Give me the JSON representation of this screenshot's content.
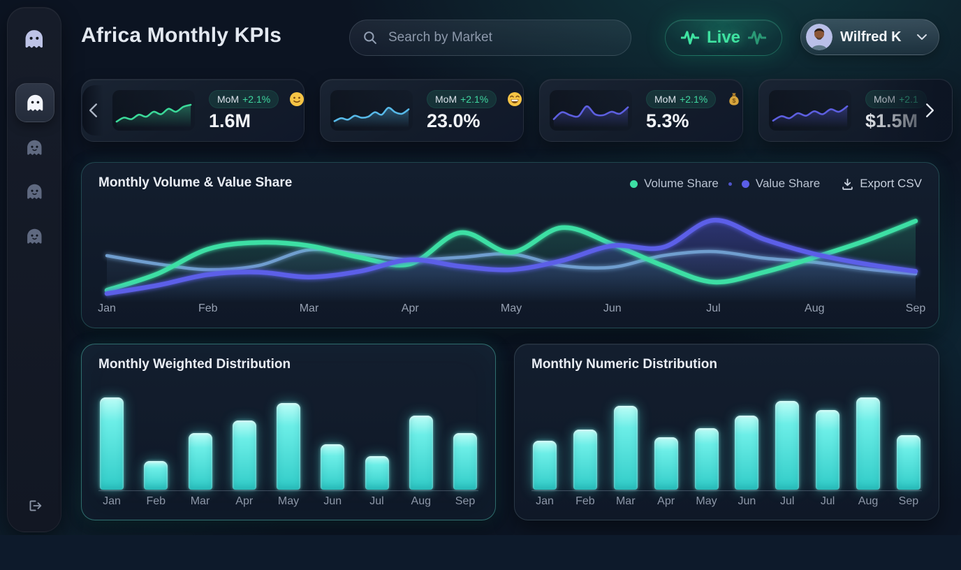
{
  "header": {
    "title": "Africa Monthly KPIs",
    "search": {
      "placeholder": "Search by Market"
    },
    "live_badge": {
      "label": "Live",
      "color": "#3fe3a1"
    },
    "user": {
      "name": "Wilfred K"
    }
  },
  "sidebar": {
    "item_count": 4,
    "active_index": 0
  },
  "kpi_carousel": {
    "cards": [
      {
        "value": "1.6M",
        "badge_label": "MoM",
        "badge_delta": "+2.1%",
        "emoji": "slightly-smiling-face",
        "spark_color": "#3bd999",
        "spark": [
          10,
          26,
          20,
          38,
          30,
          50,
          40,
          62,
          50,
          70,
          78
        ]
      },
      {
        "value": "23.0%",
        "badge_label": "MoM",
        "badge_delta": "+2.1%",
        "emoji": "beaming-face",
        "spark_color": "#57b9e8",
        "spark": [
          12,
          24,
          18,
          34,
          26,
          30,
          48,
          38,
          66,
          48,
          42,
          60
        ]
      },
      {
        "value": "5.3%",
        "badge_label": "MoM",
        "badge_delta": "+2.1%",
        "emoji": "money-bag",
        "spark_color": "#5d5fe0",
        "spark": [
          20,
          48,
          36,
          32,
          72,
          40,
          36,
          50,
          42,
          68
        ]
      },
      {
        "value": "$1.5M",
        "badge_label": "MoM",
        "badge_delta": "+2.1",
        "emoji": "",
        "spark_color": "#5d5fe0",
        "spark": [
          14,
          32,
          24,
          44,
          34,
          52,
          40,
          60,
          50,
          72
        ]
      }
    ]
  },
  "main_chart": {
    "title": "Monthly Volume & Value Share",
    "legend": [
      {
        "label": "Volume Share",
        "color": "#3ddfa4"
      },
      {
        "label": "Value Share",
        "color": "#5b5ee8"
      }
    ],
    "export_label": "Export CSV"
  },
  "bar_cards": [
    {
      "title": "Monthly Weighted Distribution"
    },
    {
      "title": "Monthly Numeric Distribution"
    }
  ],
  "chart_data": [
    {
      "type": "line",
      "title": "Monthly Volume & Value Share",
      "x": [
        "Jan",
        "Feb",
        "Mar",
        "Apr",
        "May",
        "Jun",
        "Jul",
        "Aug",
        "Sep"
      ],
      "ylim": [
        0,
        100
      ],
      "grid": false,
      "legend_position": "top-right",
      "series": [
        {
          "name": "Volume Share",
          "color": "#3ddfa4",
          "values": [
            8,
            58,
            62,
            40,
            54,
            64,
            18,
            48,
            92
          ]
        },
        {
          "name": "Value Share",
          "color": "#5b5ee8",
          "values": [
            4,
            27,
            24,
            45,
            33,
            62,
            93,
            52,
            31
          ]
        },
        {
          "name": "secondary-trend",
          "color": "#6f9ecf",
          "values": [
            50,
            33,
            57,
            45,
            52,
            36,
            55,
            42,
            28
          ]
        }
      ],
      "series_dense_step": 0.5,
      "series_dense": [
        {
          "name": "secondary-trend",
          "color": "#6f9ecf",
          "width": 4.5,
          "fill_opacity": 0.14,
          "values": [
            50,
            40,
            33,
            38,
            57,
            52,
            45,
            48,
            52,
            38,
            36,
            50,
            55,
            47,
            42,
            34,
            28
          ]
        },
        {
          "name": "Volume Share",
          "color": "#3ddfa4",
          "width": 6.5,
          "fill_opacity": 0.2,
          "values": [
            8,
            28,
            58,
            66,
            62,
            48,
            40,
            78,
            54,
            84,
            64,
            38,
            18,
            30,
            48,
            68,
            92
          ]
        },
        {
          "name": "Value Share",
          "color": "#5b5ee8",
          "width": 6.5,
          "fill_opacity": 0.38,
          "values": [
            4,
            14,
            27,
            30,
            24,
            31,
            45,
            37,
            33,
            44,
            62,
            60,
            93,
            70,
            52,
            40,
            31
          ]
        }
      ]
    },
    {
      "type": "bar",
      "title": "Monthly Weighted Distribution",
      "categories": [
        "Jan",
        "Feb",
        "Mar",
        "Apr",
        "May",
        "Jun",
        "Jul",
        "Aug",
        "Sep"
      ],
      "values": [
        100,
        31,
        61,
        75,
        94,
        49,
        36,
        80,
        61
      ],
      "ylim": [
        0,
        100
      ],
      "grid": false,
      "bar_color_top": "#bdfdf7",
      "bar_color_bottom": "#31ccc8"
    },
    {
      "type": "bar",
      "title": "Monthly Numeric Distribution",
      "categories": [
        "Jan",
        "Feb",
        "Mar",
        "Apr",
        "May",
        "Jun",
        "Jul",
        "Jul",
        "Aug",
        "Sep"
      ],
      "values": [
        53,
        65,
        91,
        57,
        67,
        80,
        96,
        86,
        100,
        59
      ],
      "ylim": [
        0,
        100
      ],
      "grid": false,
      "bar_color_top": "#bdfdf7",
      "bar_color_bottom": "#31ccc8"
    }
  ]
}
